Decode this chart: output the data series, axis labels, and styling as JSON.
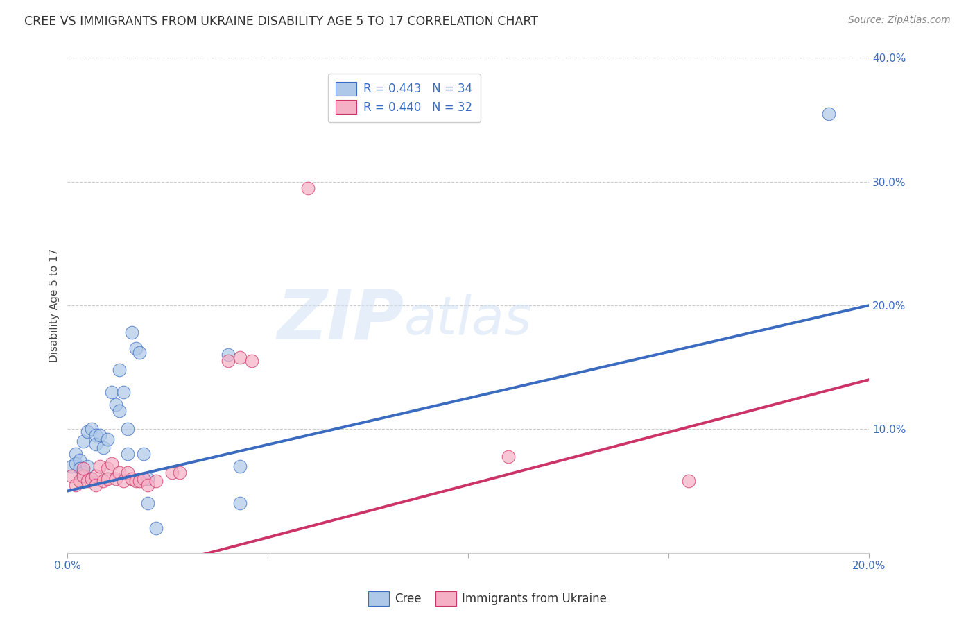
{
  "title": "CREE VS IMMIGRANTS FROM UKRAINE DISABILITY AGE 5 TO 17 CORRELATION CHART",
  "source": "Source: ZipAtlas.com",
  "ylabel": "Disability Age 5 to 17",
  "xlim": [
    0.0,
    0.2
  ],
  "ylim": [
    0.0,
    0.4
  ],
  "xticks": [
    0.0,
    0.05,
    0.1,
    0.15,
    0.2
  ],
  "yticks": [
    0.0,
    0.1,
    0.2,
    0.3,
    0.4
  ],
  "xtick_labels": [
    "0.0%",
    "",
    "",
    "",
    "20.0%"
  ],
  "ytick_labels": [
    "",
    "10.0%",
    "20.0%",
    "30.0%",
    "40.0%"
  ],
  "grid_color": "#cccccc",
  "background_color": "#ffffff",
  "cree_color": "#adc8e8",
  "ukraine_color": "#f5b0c5",
  "cree_line_color": "#3a6bbf",
  "ukraine_line_color": "#cc3366",
  "legend_r_cree": "R = 0.443",
  "legend_n_cree": "N = 34",
  "legend_r_ukraine": "R = 0.440",
  "legend_n_ukraine": "N = 32",
  "cree_line_intercept": 0.05,
  "cree_line_slope": 0.75,
  "ukraine_line_intercept": -0.03,
  "ukraine_line_slope": 0.85,
  "cree_scatter": [
    [
      0.001,
      0.07
    ],
    [
      0.002,
      0.08
    ],
    [
      0.002,
      0.072
    ],
    [
      0.003,
      0.075
    ],
    [
      0.003,
      0.068
    ],
    [
      0.004,
      0.09
    ],
    [
      0.004,
      0.065
    ],
    [
      0.005,
      0.07
    ],
    [
      0.005,
      0.098
    ],
    [
      0.006,
      0.1
    ],
    [
      0.006,
      0.06
    ],
    [
      0.007,
      0.095
    ],
    [
      0.007,
      0.088
    ],
    [
      0.008,
      0.095
    ],
    [
      0.009,
      0.085
    ],
    [
      0.01,
      0.092
    ],
    [
      0.011,
      0.13
    ],
    [
      0.012,
      0.12
    ],
    [
      0.013,
      0.115
    ],
    [
      0.013,
      0.148
    ],
    [
      0.014,
      0.13
    ],
    [
      0.015,
      0.1
    ],
    [
      0.015,
      0.08
    ],
    [
      0.016,
      0.178
    ],
    [
      0.017,
      0.165
    ],
    [
      0.018,
      0.162
    ],
    [
      0.019,
      0.08
    ],
    [
      0.02,
      0.04
    ],
    [
      0.02,
      0.06
    ],
    [
      0.022,
      0.02
    ],
    [
      0.04,
      0.16
    ],
    [
      0.043,
      0.07
    ],
    [
      0.043,
      0.04
    ],
    [
      0.19,
      0.355
    ]
  ],
  "ukraine_scatter": [
    [
      0.001,
      0.062
    ],
    [
      0.002,
      0.055
    ],
    [
      0.003,
      0.058
    ],
    [
      0.004,
      0.062
    ],
    [
      0.004,
      0.068
    ],
    [
      0.005,
      0.058
    ],
    [
      0.006,
      0.06
    ],
    [
      0.007,
      0.062
    ],
    [
      0.007,
      0.055
    ],
    [
      0.008,
      0.07
    ],
    [
      0.009,
      0.058
    ],
    [
      0.01,
      0.068
    ],
    [
      0.01,
      0.06
    ],
    [
      0.011,
      0.072
    ],
    [
      0.012,
      0.06
    ],
    [
      0.013,
      0.065
    ],
    [
      0.014,
      0.058
    ],
    [
      0.015,
      0.065
    ],
    [
      0.016,
      0.06
    ],
    [
      0.017,
      0.058
    ],
    [
      0.018,
      0.058
    ],
    [
      0.019,
      0.06
    ],
    [
      0.02,
      0.055
    ],
    [
      0.022,
      0.058
    ],
    [
      0.026,
      0.065
    ],
    [
      0.028,
      0.065
    ],
    [
      0.04,
      0.155
    ],
    [
      0.043,
      0.158
    ],
    [
      0.046,
      0.155
    ],
    [
      0.06,
      0.295
    ],
    [
      0.11,
      0.078
    ],
    [
      0.155,
      0.058
    ]
  ],
  "watermark_zip": "ZIP",
  "watermark_atlas": "atlas",
  "zip_color": "#c8d8ee",
  "atlas_color": "#c8d8ee",
  "title_fontsize": 12.5,
  "axis_label_fontsize": 11,
  "tick_fontsize": 11,
  "source_fontsize": 10
}
